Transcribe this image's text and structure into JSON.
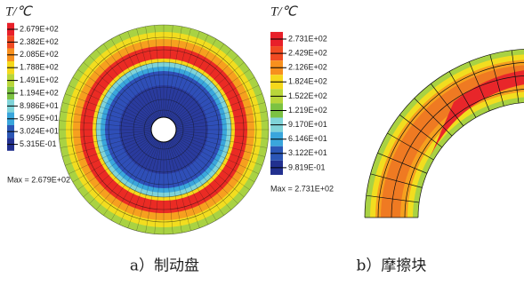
{
  "panels": [
    {
      "title": "T/℃",
      "labels": [
        "2.679E+02",
        "2.382E+02",
        "2.085E+02",
        "1.788E+02",
        "1.491E+02",
        "1.194E+02",
        "8.986E+01",
        "5.995E+01",
        "3.024E+01",
        "5.315E-01"
      ],
      "max_text": "Max = 2.679E+02",
      "caption": "a）制动盘"
    },
    {
      "title": "T/℃",
      "labels": [
        "2.731E+02",
        "2.429E+02",
        "2.126E+02",
        "1.824E+02",
        "1.522E+02",
        "1.219E+02",
        "9.170E+01",
        "6.146E+01",
        "3.122E+01",
        "9.819E-01"
      ],
      "max_text": "Max = 2.731E+02",
      "caption": "b）摩擦块"
    }
  ],
  "colors": [
    "#e8202a",
    "#f04a22",
    "#f7901e",
    "#f5d81c",
    "#b9d63a",
    "#7cc242",
    "#7fd3d8",
    "#3aa6dc",
    "#2b56b5",
    "#22308f"
  ]
}
